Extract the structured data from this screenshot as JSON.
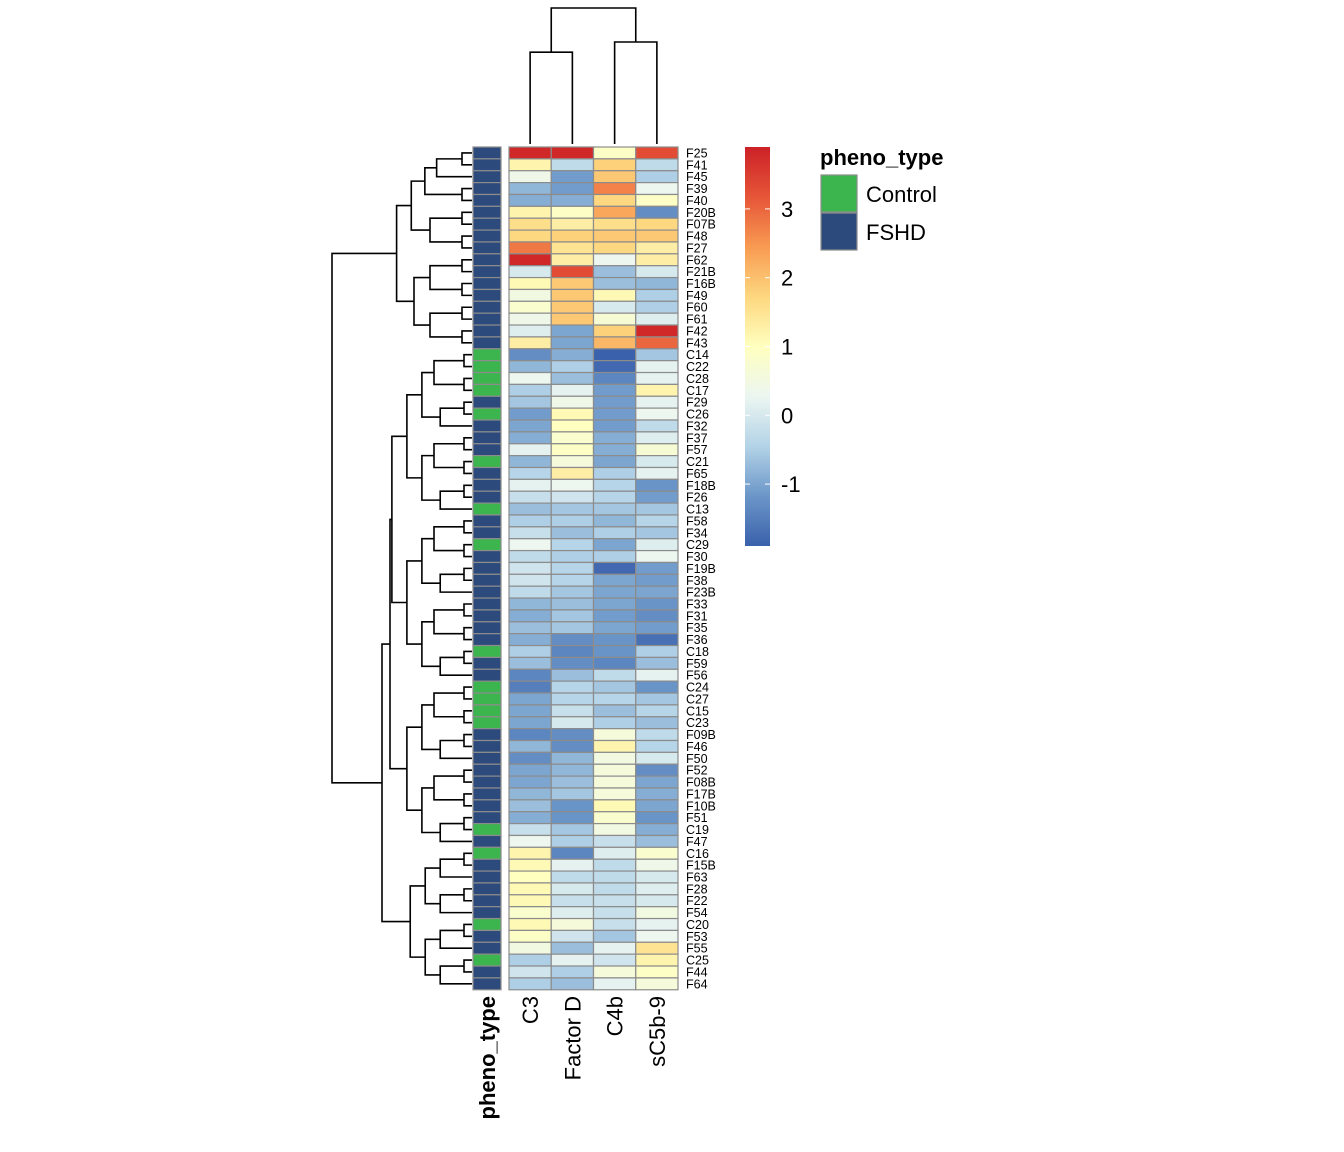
{
  "chart_data": {
    "type": "heatmap",
    "title": "",
    "columns": [
      "C3",
      "Factor D",
      "C4b",
      "sC5b-9"
    ],
    "rows": [
      "F25",
      "F41",
      "F45",
      "F39",
      "F40",
      "F20B",
      "F07B",
      "F48",
      "F27",
      "F62",
      "F21B",
      "F16B",
      "F49",
      "F60",
      "F61",
      "F42",
      "F43",
      "C14",
      "C22",
      "C28",
      "C17",
      "F29",
      "C26",
      "F32",
      "F37",
      "F57",
      "C21",
      "F65",
      "F18B",
      "F26",
      "C13",
      "F58",
      "F34",
      "C29",
      "F30",
      "F19B",
      "F38",
      "F23B",
      "F33",
      "F31",
      "F35",
      "F36",
      "C18",
      "F59",
      "F56",
      "C24",
      "C27",
      "C15",
      "C23",
      "F09B",
      "F46",
      "F50",
      "F52",
      "F08B",
      "F17B",
      "F10B",
      "F51",
      "C19",
      "F47",
      "C16",
      "F15B",
      "F63",
      "F28",
      "F22",
      "F54",
      "C20",
      "F53",
      "F55",
      "C25",
      "F44",
      "F64"
    ],
    "annotation_title": "pheno_type",
    "annotation_groups": [
      "Control",
      "FSHD"
    ],
    "annotation_colors": {
      "Control": "#3cb54f",
      "FSHD": "#2c4b7c"
    },
    "scale_ticks": [
      3,
      2,
      1,
      0,
      -1
    ],
    "scale_range": [
      -1.9,
      3.9
    ],
    "color_stops": [
      "#3a61ac",
      "#6b96c8",
      "#b3d3e7",
      "#ecf6f1",
      "#ffffbf",
      "#fdd77f",
      "#f89a52",
      "#e65538",
      "#cc2127"
    ],
    "values": [
      [
        3.8,
        3.8,
        0.9,
        3.3
      ],
      [
        1.2,
        -0.3,
        1.8,
        -0.3
      ],
      [
        0.4,
        -1.1,
        1.9,
        -0.5
      ],
      [
        -0.8,
        -1.1,
        2.7,
        0.3
      ],
      [
        -0.9,
        -0.9,
        1.7,
        0.9
      ],
      [
        1.2,
        0.9,
        2.3,
        -1.3
      ],
      [
        1.6,
        1.3,
        1.6,
        1.7
      ],
      [
        1.7,
        1.8,
        1.9,
        1.9
      ],
      [
        2.8,
        1.5,
        1.7,
        1.3
      ],
      [
        3.8,
        1.3,
        0.3,
        1.3
      ],
      [
        0.0,
        3.3,
        -0.7,
        0.0
      ],
      [
        1.1,
        1.9,
        -0.7,
        -0.8
      ],
      [
        0.5,
        1.9,
        1.1,
        -0.5
      ],
      [
        0.8,
        1.9,
        0.0,
        -0.5
      ],
      [
        0.4,
        1.9,
        0.7,
        0.1
      ],
      [
        0.1,
        -1.0,
        1.8,
        3.8
      ],
      [
        1.3,
        -1.0,
        2.1,
        3.0
      ],
      [
        -1.3,
        -0.9,
        -1.9,
        -0.6
      ],
      [
        -0.8,
        -0.5,
        -1.8,
        0.2
      ],
      [
        0.3,
        -0.7,
        -1.4,
        0.2
      ],
      [
        -0.5,
        0.2,
        -1.1,
        1.2
      ],
      [
        -0.6,
        0.4,
        -1.1,
        0.2
      ],
      [
        -1.1,
        1.1,
        -1.1,
        0.3
      ],
      [
        -1.0,
        1.0,
        -1.1,
        -0.3
      ],
      [
        -0.9,
        0.8,
        -0.9,
        0.1
      ],
      [
        0.2,
        0.9,
        -0.9,
        0.7
      ],
      [
        -0.8,
        0.6,
        -1.0,
        0.0
      ],
      [
        -0.4,
        1.3,
        -0.5,
        0.2
      ],
      [
        0.2,
        0.3,
        -0.4,
        -1.2
      ],
      [
        -0.2,
        -0.1,
        -0.4,
        -1.1
      ],
      [
        -0.7,
        -0.6,
        -0.6,
        -0.6
      ],
      [
        -0.5,
        -0.5,
        -0.8,
        -0.4
      ],
      [
        -0.2,
        -0.7,
        -0.5,
        -0.6
      ],
      [
        0.3,
        -0.4,
        -1.0,
        0.1
      ],
      [
        -0.3,
        -0.5,
        -0.5,
        0.3
      ],
      [
        -0.1,
        -0.4,
        -1.8,
        -1.1
      ],
      [
        -0.1,
        -0.4,
        -1.0,
        -1.1
      ],
      [
        -0.3,
        -0.6,
        -1.0,
        -1.0
      ],
      [
        -0.8,
        -0.7,
        -1.0,
        -1.2
      ],
      [
        -0.9,
        -0.6,
        -1.1,
        -1.3
      ],
      [
        -0.7,
        -0.6,
        -1.0,
        -1.1
      ],
      [
        -0.9,
        -1.3,
        -1.2,
        -1.7
      ],
      [
        -0.5,
        -1.4,
        -1.2,
        -0.5
      ],
      [
        -0.7,
        -1.3,
        -1.4,
        -0.7
      ],
      [
        -1.4,
        -0.7,
        -0.3,
        0.2
      ],
      [
        -1.5,
        -0.4,
        -0.6,
        -1.2
      ],
      [
        -1.0,
        -0.4,
        -0.4,
        -0.6
      ],
      [
        -1.0,
        -0.2,
        -0.7,
        -0.4
      ],
      [
        -1.0,
        0.0,
        -0.5,
        -0.7
      ],
      [
        -1.4,
        -1.3,
        0.6,
        -0.3
      ],
      [
        -0.8,
        -1.3,
        1.2,
        -0.4
      ],
      [
        -1.3,
        -0.8,
        0.5,
        0.0
      ],
      [
        -1.0,
        -0.8,
        0.6,
        -1.3
      ],
      [
        -1.0,
        -0.7,
        0.6,
        -1.0
      ],
      [
        -0.8,
        -0.6,
        0.6,
        -0.9
      ],
      [
        -0.7,
        -1.2,
        1.1,
        -1.0
      ],
      [
        -0.9,
        -1.2,
        0.8,
        -1.2
      ],
      [
        -0.2,
        -0.6,
        0.5,
        -0.9
      ],
      [
        0.3,
        -0.5,
        -0.2,
        -0.7
      ],
      [
        1.2,
        -1.4,
        0.1,
        0.8
      ],
      [
        1.1,
        0.2,
        -0.3,
        0.4
      ],
      [
        1.0,
        -0.3,
        -0.3,
        0.0
      ],
      [
        1.1,
        0.0,
        -0.3,
        0.1
      ],
      [
        1.1,
        -0.2,
        -0.2,
        0.0
      ],
      [
        0.8,
        0.1,
        -0.2,
        0.5
      ],
      [
        1.1,
        0.6,
        -0.2,
        0.2
      ],
      [
        0.9,
        -0.1,
        -0.6,
        0.3
      ],
      [
        0.5,
        -0.7,
        0.2,
        1.5
      ],
      [
        -0.5,
        0.2,
        -0.1,
        1.2
      ],
      [
        -0.1,
        -0.5,
        0.6,
        0.9
      ],
      [
        -0.5,
        -0.7,
        0.2,
        0.6
      ]
    ],
    "phenotype": [
      "FSHD",
      "FSHD",
      "FSHD",
      "FSHD",
      "FSHD",
      "FSHD",
      "FSHD",
      "FSHD",
      "FSHD",
      "FSHD",
      "FSHD",
      "FSHD",
      "FSHD",
      "FSHD",
      "FSHD",
      "FSHD",
      "FSHD",
      "Control",
      "Control",
      "Control",
      "Control",
      "FSHD",
      "Control",
      "FSHD",
      "FSHD",
      "FSHD",
      "Control",
      "FSHD",
      "FSHD",
      "FSHD",
      "Control",
      "FSHD",
      "FSHD",
      "Control",
      "FSHD",
      "FSHD",
      "FSHD",
      "FSHD",
      "FSHD",
      "FSHD",
      "FSHD",
      "FSHD",
      "Control",
      "FSHD",
      "FSHD",
      "Control",
      "Control",
      "Control",
      "Control",
      "FSHD",
      "FSHD",
      "FSHD",
      "FSHD",
      "FSHD",
      "FSHD",
      "FSHD",
      "FSHD",
      "Control",
      "FSHD",
      "Control",
      "FSHD",
      "FSHD",
      "FSHD",
      "FSHD",
      "FSHD",
      "Control",
      "FSHD",
      "FSHD",
      "Control",
      "FSHD",
      "FSHD"
    ],
    "legend_placement": "right",
    "dendrograms": [
      "rows",
      "columns"
    ]
  }
}
